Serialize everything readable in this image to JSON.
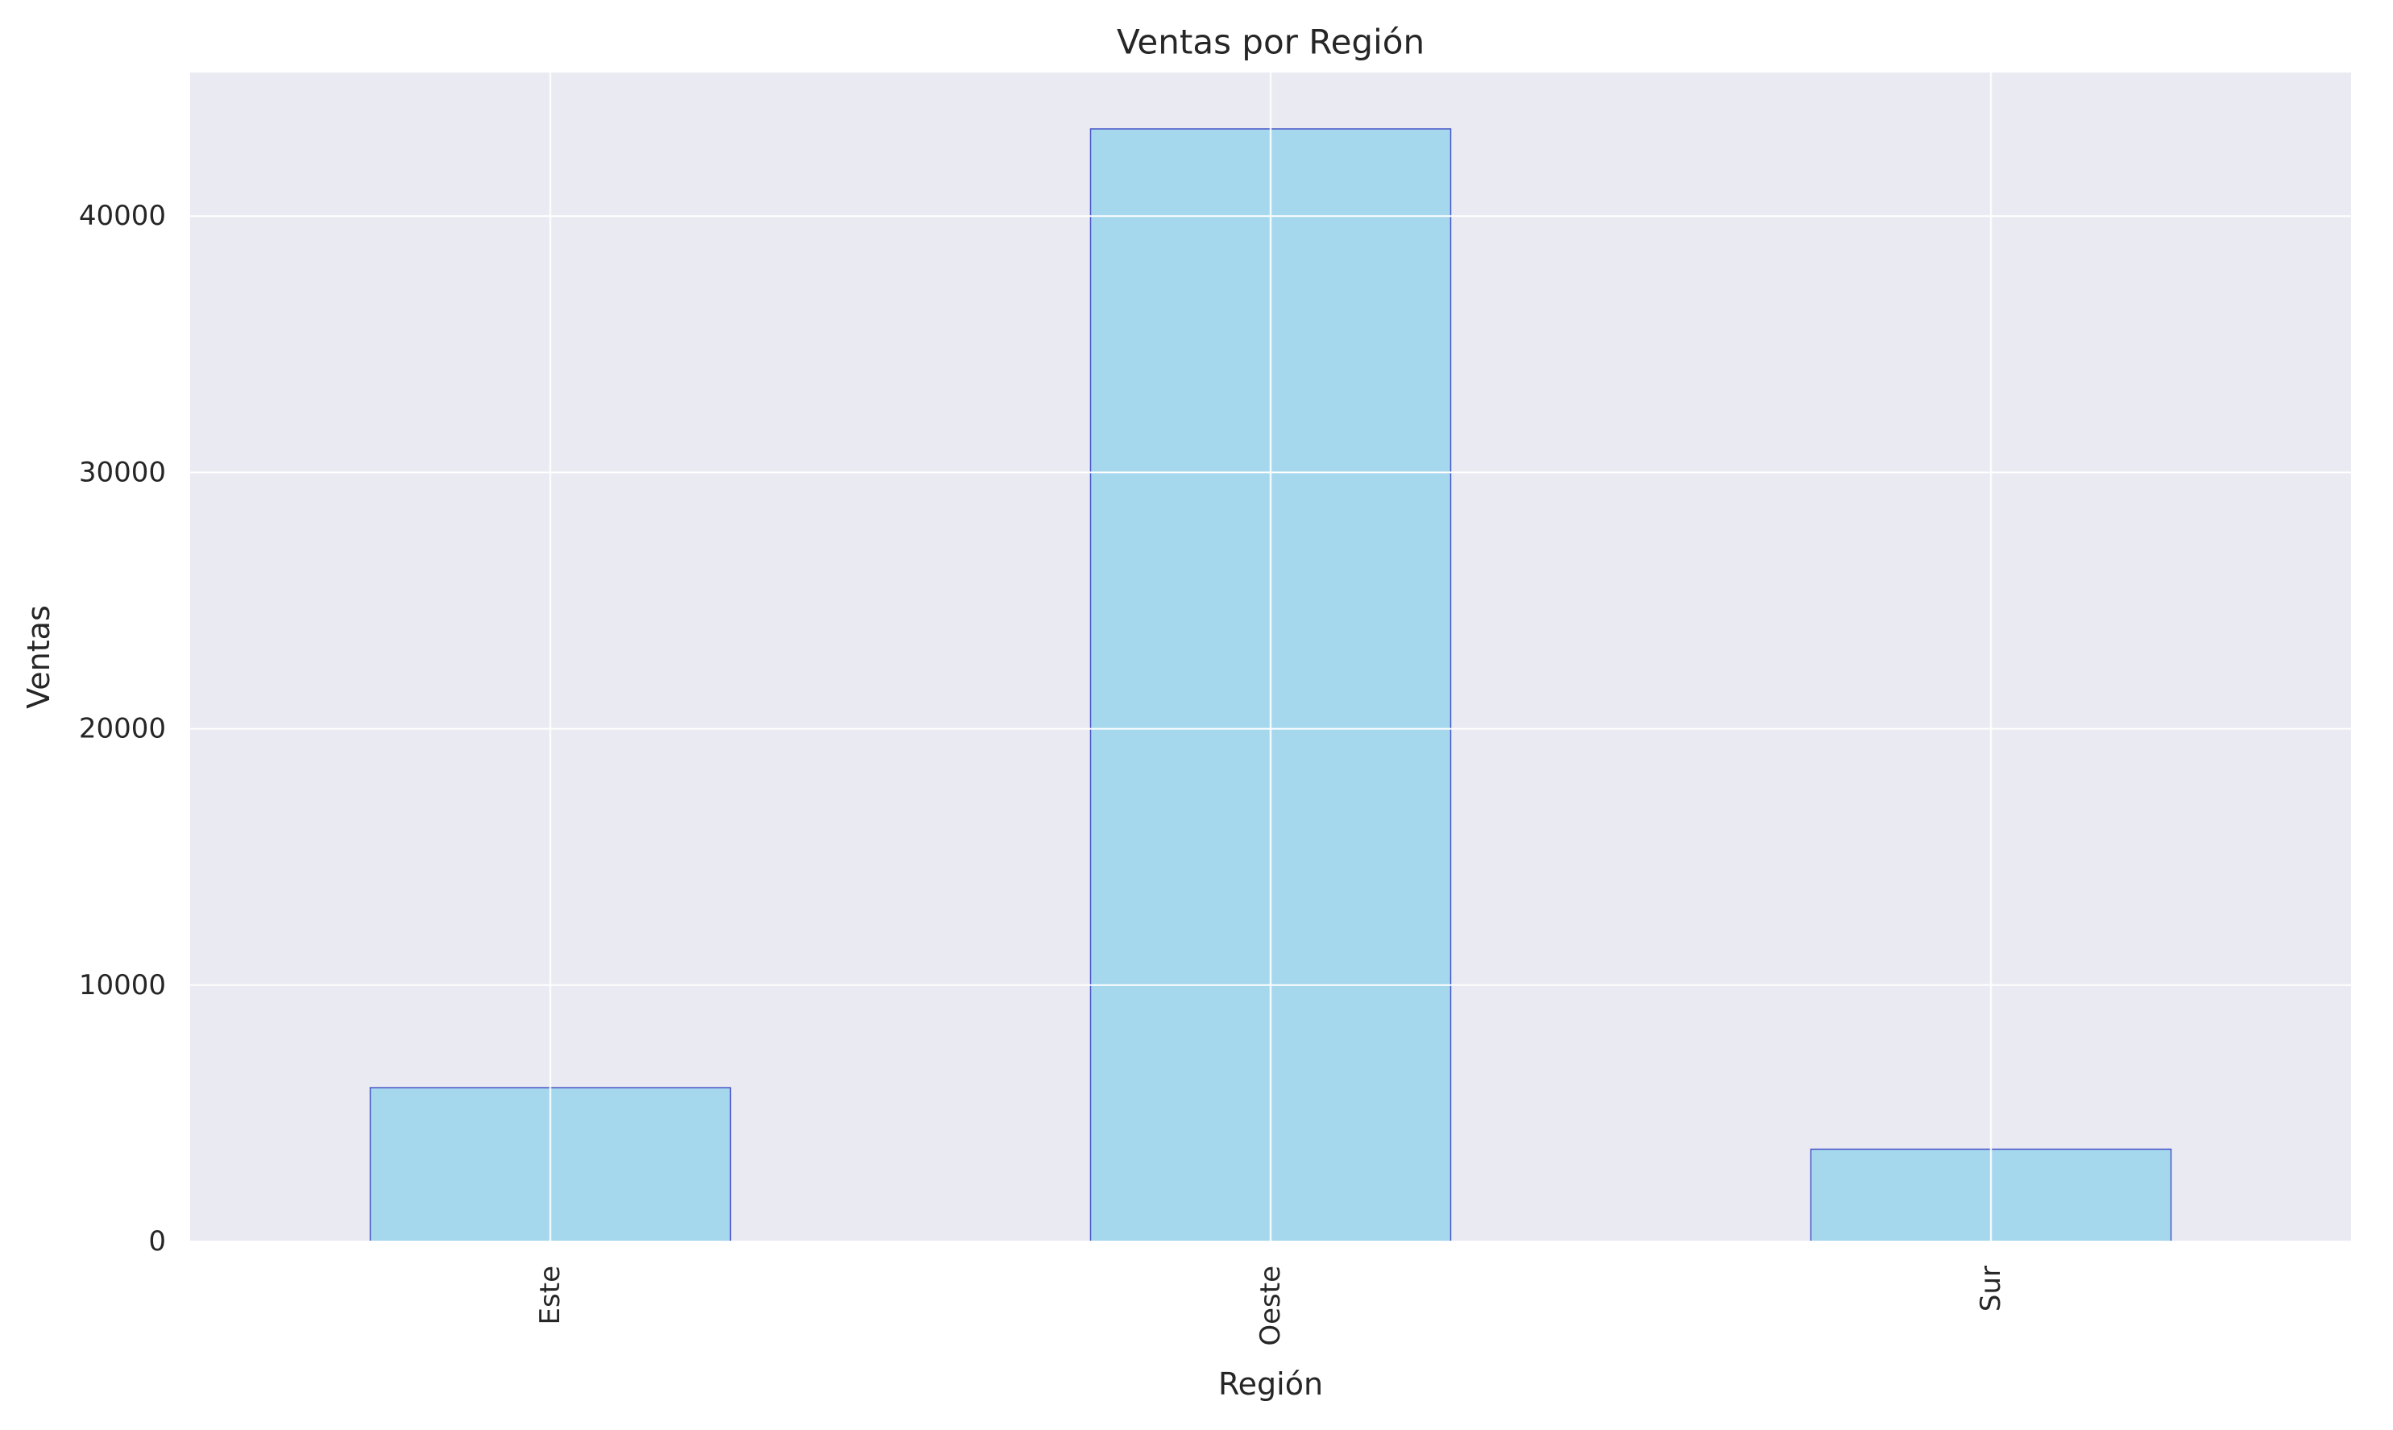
{
  "chart_data": {
    "type": "bar",
    "title": "Ventas por Región",
    "xlabel": "Región",
    "ylabel": "Ventas",
    "categories": [
      "Este",
      "Oeste",
      "Sur"
    ],
    "values": [
      6000,
      43400,
      3600
    ],
    "ylim": [
      0,
      45600
    ],
    "yticks": [
      0,
      10000,
      20000,
      30000,
      40000
    ],
    "ytick_labels": [
      "0",
      "10000",
      "20000",
      "30000",
      "40000"
    ],
    "grid": true,
    "x_tick_rotation": "vertical",
    "colors": {
      "plot_background": "#eaeaf2",
      "grid": "#ffffff",
      "bar_fill": "#87ceeb",
      "bar_edge": "#4a56c8"
    }
  }
}
